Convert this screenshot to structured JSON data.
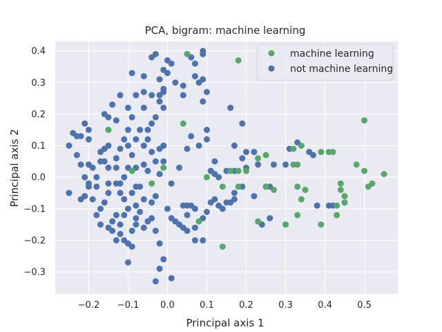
{
  "colors": {
    "plot_background": "#EAEAF2",
    "grid": "#FFFFFF",
    "machine_learning": "#55A868",
    "not_machine_learning": "#4C72B0",
    "text": "#262626"
  },
  "chart_data": {
    "type": "scatter",
    "title": "PCA, bigram: machine learning",
    "xlabel": "Principal axis 1",
    "ylabel": "Principal axis 2",
    "xlim": [
      -0.285,
      0.585
    ],
    "ylim": [
      -0.37,
      0.43
    ],
    "xticks": [
      -0.2,
      -0.1,
      0.0,
      0.1,
      0.2,
      0.3,
      0.4,
      0.5
    ],
    "xtick_labels": [
      "−0.2",
      "−0.1",
      "0.0",
      "0.1",
      "0.2",
      "0.3",
      "0.4",
      "0.5"
    ],
    "yticks": [
      -0.3,
      -0.2,
      -0.1,
      0.0,
      0.1,
      0.2,
      0.3,
      0.4
    ],
    "ytick_labels": [
      "−0.3",
      "−0.2",
      "−0.1",
      "0.0",
      "0.1",
      "0.2",
      "0.3",
      "0.4"
    ],
    "grid": true,
    "legend_position": "top-right",
    "series": [
      {
        "name": "machine learning",
        "color": "#55A868",
        "points": [
          [
            0.05,
            0.39
          ],
          [
            0.18,
            0.37
          ],
          [
            0.04,
            0.17
          ],
          [
            -0.15,
            0.15
          ],
          [
            -0.09,
            0.02
          ],
          [
            -0.04,
            -0.02
          ],
          [
            -0.01,
            0.03
          ],
          [
            0.08,
            -0.14
          ],
          [
            0.1,
            0.0
          ],
          [
            0.14,
            -0.03
          ],
          [
            0.16,
            0.02
          ],
          [
            0.18,
            0.02
          ],
          [
            0.18,
            -0.03
          ],
          [
            0.2,
            0.02
          ],
          [
            0.23,
            0.06
          ],
          [
            0.25,
            0.07
          ],
          [
            0.25,
            -0.03
          ],
          [
            0.27,
            -0.04
          ],
          [
            0.23,
            -0.14
          ],
          [
            0.3,
            -0.15
          ],
          [
            0.32,
            0.04
          ],
          [
            0.33,
            0.04
          ],
          [
            0.32,
            0.09
          ],
          [
            0.34,
            0.1
          ],
          [
            0.33,
            -0.03
          ],
          [
            0.34,
            -0.07
          ],
          [
            0.35,
            -0.04
          ],
          [
            0.33,
            -0.12
          ],
          [
            0.39,
            0.08
          ],
          [
            0.41,
            0.08
          ],
          [
            0.42,
            0.08
          ],
          [
            0.39,
            -0.15
          ],
          [
            0.43,
            -0.09
          ],
          [
            0.43,
            -0.12
          ],
          [
            0.44,
            -0.02
          ],
          [
            0.44,
            -0.04
          ],
          [
            0.45,
            -0.06
          ],
          [
            0.45,
            -0.08
          ],
          [
            0.48,
            0.04
          ],
          [
            0.5,
            0.18
          ],
          [
            0.5,
            0.02
          ],
          [
            0.51,
            -0.03
          ],
          [
            0.52,
            -0.02
          ],
          [
            0.55,
            0.01
          ],
          [
            0.14,
            -0.22
          ]
        ]
      },
      {
        "name": "not machine learning",
        "color": "#4C72B0",
        "points": [
          [
            -0.25,
            0.1
          ],
          [
            -0.24,
            0.14
          ],
          [
            -0.23,
            0.13
          ],
          [
            -0.22,
            0.13
          ],
          [
            -0.21,
            0.17
          ],
          [
            -0.2,
            0.15
          ],
          [
            -0.2,
            0.12
          ],
          [
            -0.23,
            0.07
          ],
          [
            -0.22,
            0.04
          ],
          [
            -0.2,
            0.04
          ],
          [
            -0.19,
            0.03
          ],
          [
            -0.21,
            0.0
          ],
          [
            -0.2,
            -0.02
          ],
          [
            -0.2,
            -0.03
          ],
          [
            -0.21,
            -0.06
          ],
          [
            -0.22,
            -0.07
          ],
          [
            -0.25,
            -0.05
          ],
          [
            -0.19,
            -0.07
          ],
          [
            -0.18,
            -0.03
          ],
          [
            -0.18,
            0.0
          ],
          [
            -0.17,
            0.05
          ],
          [
            -0.17,
            0.08
          ],
          [
            -0.16,
            0.09
          ],
          [
            -0.16,
            0.05
          ],
          [
            -0.15,
            0.1
          ],
          [
            -0.15,
            0.03
          ],
          [
            -0.15,
            -0.02
          ],
          [
            -0.15,
            -0.05
          ],
          [
            -0.16,
            -0.08
          ],
          [
            -0.17,
            -0.1
          ],
          [
            -0.18,
            -0.12
          ],
          [
            -0.17,
            -0.15
          ],
          [
            -0.15,
            -0.16
          ],
          [
            -0.14,
            -0.14
          ],
          [
            -0.13,
            -0.12
          ],
          [
            -0.14,
            -0.17
          ],
          [
            -0.13,
            -0.2
          ],
          [
            -0.12,
            -0.18
          ],
          [
            -0.12,
            -0.15
          ],
          [
            -0.11,
            -0.12
          ],
          [
            -0.11,
            -0.2
          ],
          [
            -0.1,
            -0.21
          ],
          [
            -0.1,
            -0.27
          ],
          [
            -0.09,
            -0.22
          ],
          [
            -0.09,
            -0.17
          ],
          [
            -0.08,
            -0.15
          ],
          [
            -0.08,
            -0.13
          ],
          [
            -0.07,
            -0.11
          ],
          [
            -0.06,
            -0.16
          ],
          [
            -0.05,
            -0.14
          ],
          [
            -0.04,
            -0.13
          ],
          [
            -0.03,
            -0.17
          ],
          [
            -0.02,
            -0.21
          ],
          [
            -0.01,
            -0.26
          ],
          [
            -0.02,
            -0.29
          ],
          [
            -0.03,
            -0.33
          ],
          [
            0.01,
            -0.32
          ],
          [
            -0.07,
            -0.03
          ],
          [
            -0.06,
            -0.07
          ],
          [
            -0.04,
            -0.08
          ],
          [
            -0.03,
            -0.06
          ],
          [
            -0.08,
            -0.09
          ],
          [
            -0.1,
            -0.1
          ],
          [
            -0.11,
            -0.07
          ],
          [
            -0.12,
            -0.05
          ],
          [
            -0.13,
            -0.02
          ],
          [
            -0.13,
            0.03
          ],
          [
            -0.13,
            0.06
          ],
          [
            -0.12,
            0.09
          ],
          [
            -0.11,
            0.12
          ],
          [
            -0.1,
            0.15
          ],
          [
            -0.09,
            0.19
          ],
          [
            -0.1,
            0.1
          ],
          [
            -0.09,
            0.07
          ],
          [
            -0.08,
            0.12
          ],
          [
            -0.07,
            0.15
          ],
          [
            -0.06,
            0.1
          ],
          [
            -0.05,
            0.12
          ],
          [
            -0.04,
            0.08
          ],
          [
            -0.03,
            0.05
          ],
          [
            -0.01,
            0.05
          ],
          [
            -0.02,
            0.01
          ],
          [
            -0.06,
            0.04
          ],
          [
            -0.08,
            0.03
          ],
          [
            -0.1,
            0.03
          ],
          [
            -0.11,
            0.0
          ],
          [
            -0.12,
            -0.02
          ],
          [
            -0.09,
            -0.05
          ],
          [
            -0.08,
            -0.03
          ],
          [
            -0.05,
            0.02
          ],
          [
            -0.02,
            0.09
          ],
          [
            -0.01,
            0.1
          ],
          [
            -0.06,
            0.22
          ],
          [
            -0.04,
            0.26
          ],
          [
            -0.04,
            0.17
          ],
          [
            -0.05,
            0.15
          ],
          [
            -0.03,
            0.19
          ],
          [
            -0.08,
            0.26
          ],
          [
            -0.06,
            0.27
          ],
          [
            -0.1,
            0.22
          ],
          [
            -0.12,
            0.26
          ],
          [
            -0.14,
            0.23
          ],
          [
            -0.13,
            0.18
          ],
          [
            -0.15,
            0.19
          ],
          [
            -0.16,
            0.2
          ],
          [
            -0.09,
            0.33
          ],
          [
            -0.06,
            0.32
          ],
          [
            -0.04,
            0.38
          ],
          [
            -0.03,
            0.39
          ],
          [
            -0.01,
            0.34
          ],
          [
            -0.01,
            0.27
          ],
          [
            -0.02,
            0.26
          ],
          [
            -0.01,
            0.22
          ],
          [
            0.0,
            0.37
          ],
          [
            0.0,
            0.33
          ],
          [
            0.01,
            0.36
          ],
          [
            0.04,
            0.29
          ],
          [
            0.04,
            0.26
          ],
          [
            0.06,
            0.38
          ],
          [
            0.07,
            0.32
          ],
          [
            0.09,
            0.31
          ],
          [
            0.09,
            0.39
          ],
          [
            0.1,
            0.27
          ],
          [
            0.08,
            0.3
          ],
          [
            0.09,
            0.4
          ],
          [
            0.07,
            0.36
          ],
          [
            0.09,
            0.24
          ],
          [
            0.02,
            0.3
          ],
          [
            -0.02,
            0.31
          ],
          [
            -0.01,
            0.28
          ],
          [
            -0.02,
            0.24
          ],
          [
            0.06,
            0.13
          ],
          [
            0.1,
            0.12
          ],
          [
            0.1,
            0.15
          ],
          [
            0.08,
            0.1
          ],
          [
            0.05,
            0.09
          ],
          [
            0.03,
            0.03
          ],
          [
            0.01,
            -0.02
          ],
          [
            0.0,
            -0.1
          ],
          [
            0.01,
            -0.13
          ],
          [
            0.02,
            -0.14
          ],
          [
            0.03,
            -0.15
          ],
          [
            0.04,
            -0.09
          ],
          [
            0.05,
            -0.09
          ],
          [
            0.06,
            -0.09
          ],
          [
            0.07,
            -0.1
          ],
          [
            0.05,
            -0.12
          ],
          [
            0.04,
            -0.16
          ],
          [
            0.05,
            -0.17
          ],
          [
            0.07,
            -0.16
          ],
          [
            0.09,
            -0.13
          ],
          [
            0.1,
            -0.11
          ],
          [
            0.11,
            -0.08
          ],
          [
            0.12,
            -0.07
          ],
          [
            0.13,
            -0.09
          ],
          [
            0.14,
            -0.1
          ],
          [
            0.15,
            -0.08
          ],
          [
            0.16,
            -0.08
          ],
          [
            0.17,
            -0.07
          ],
          [
            0.17,
            -0.05
          ],
          [
            0.09,
            -0.2
          ],
          [
            0.07,
            -0.2
          ],
          [
            0.12,
            0.05
          ],
          [
            0.11,
            0.02
          ],
          [
            0.12,
            0.01
          ],
          [
            0.13,
            0.0
          ],
          [
            0.15,
            0.02
          ],
          [
            0.17,
            0.02
          ],
          [
            0.17,
            0.1
          ],
          [
            0.19,
            0.17
          ],
          [
            0.19,
            0.06
          ],
          [
            0.2,
            0.08
          ],
          [
            0.22,
            0.08
          ],
          [
            0.23,
            0.04
          ],
          [
            0.25,
            -0.03
          ],
          [
            0.26,
            -0.03
          ],
          [
            0.24,
            -0.15
          ],
          [
            0.26,
            -0.13
          ],
          [
            0.27,
            0.04
          ],
          [
            0.3,
            0.04
          ],
          [
            0.31,
            0.09
          ],
          [
            0.33,
            0.11
          ],
          [
            0.36,
            0.08
          ],
          [
            0.37,
            0.07
          ],
          [
            0.38,
            -0.09
          ],
          [
            0.41,
            -0.09
          ],
          [
            0.42,
            -0.09
          ],
          [
            0.16,
            0.22
          ],
          [
            0.2,
            0.03
          ],
          [
            0.22,
            -0.06
          ],
          [
            0.19,
            -0.03
          ]
        ]
      }
    ]
  }
}
